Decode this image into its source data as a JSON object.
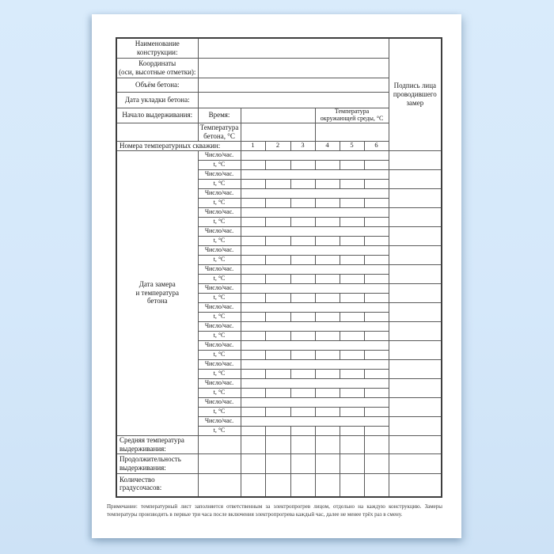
{
  "colors": {
    "background": "#d5e8fa",
    "paper": "#ffffff",
    "table_border": "#4a4a4a",
    "text": "#1c1c1c"
  },
  "form": {
    "fields": {
      "construction_name": "Наименование\nконструкции:",
      "coordinates": "Координаты\n(оси, высотные отметки):",
      "concrete_volume": "Объём бетона:",
      "placement_date": "Дата укладки бетона:",
      "curing_start": "Начало  выдерживания:",
      "time": "Время:",
      "ambient_temp": "Температура\nокружающей среды, °С",
      "concrete_temp": "Температура\nбетона, °С",
      "well_numbers": "Номера температурных скважин:",
      "signature": "Подпись  лица\nпроводившего\nзамер",
      "date_temp_section": "Дата замера\nи температура\nбетона",
      "date_hour": "Число/час.",
      "temp": "t, °С",
      "avg_temp": "Средняя температура\nвыдерживания:",
      "duration": "Продолжительность\n выдерживания:",
      "degree_hours": "Количество градусочасов:"
    },
    "well_columns": [
      "1",
      "2",
      "3",
      "4",
      "5",
      "6"
    ],
    "measurement_pairs": 15,
    "note": "Примечание: температурный лист заполняется ответственным за электропрогрев лицом, отдельно на каждую конструкцию. Замеры температуры производить в первые три часа после включения электропрогрева каждый час, далее не менее трёх раз в смену."
  }
}
